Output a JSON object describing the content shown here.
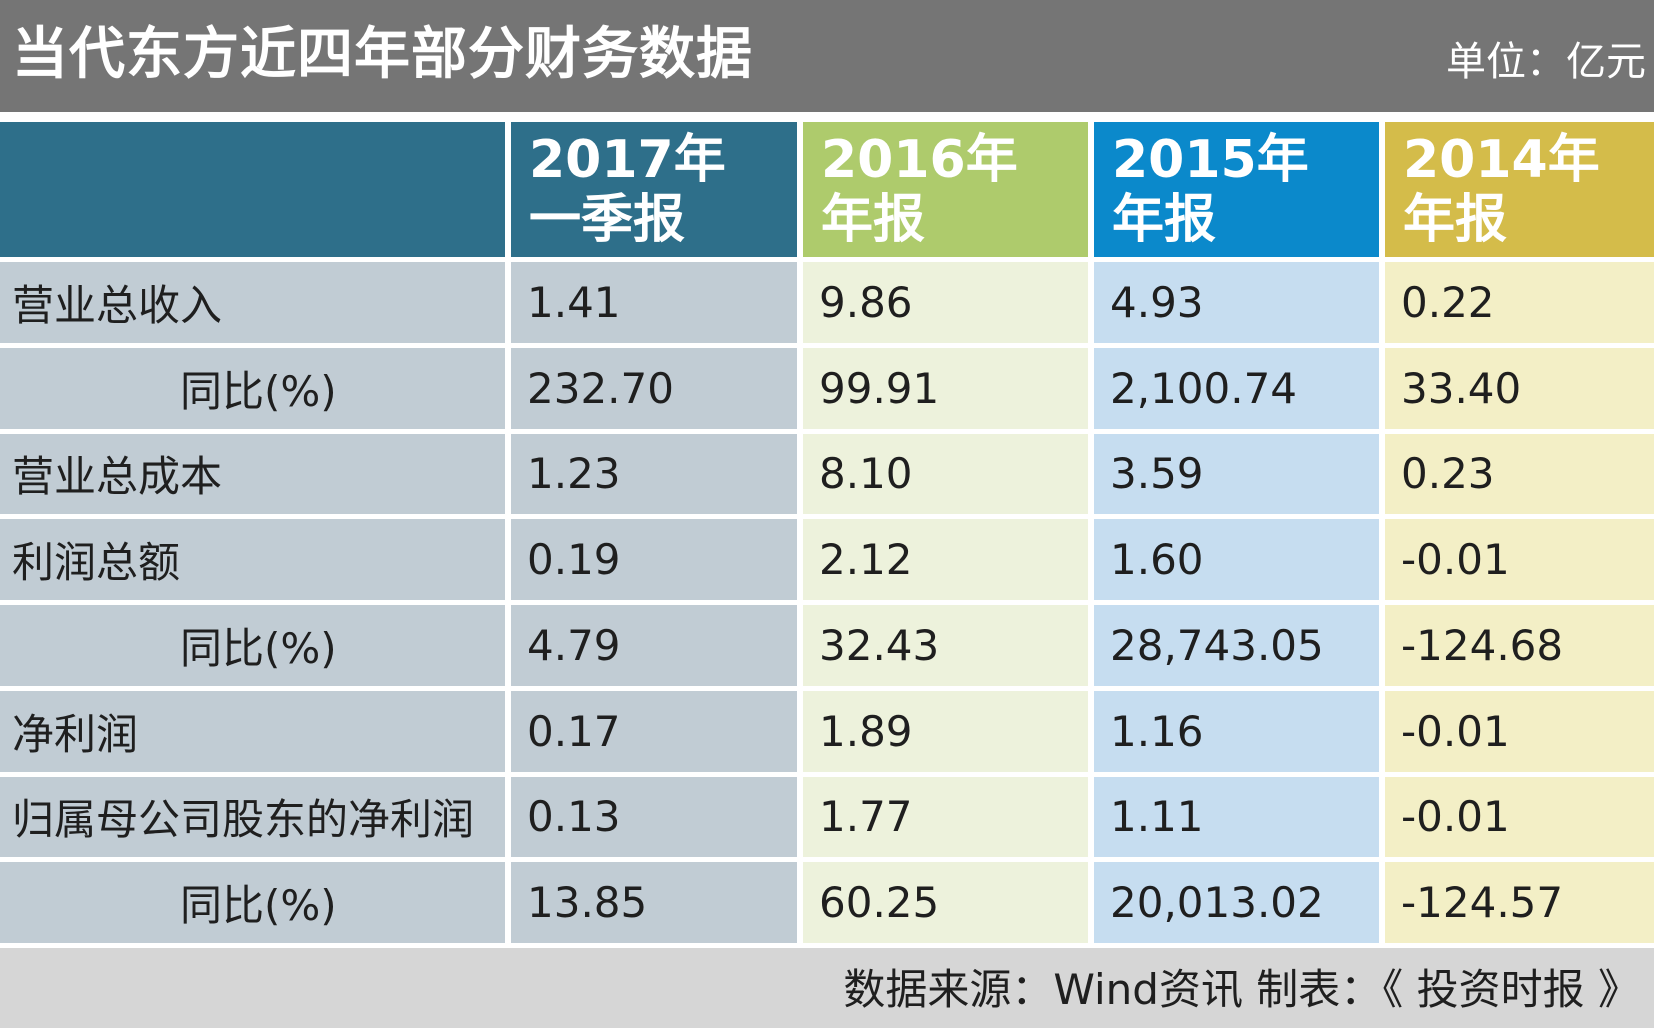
{
  "title": "当代东方近四年部分财务数据",
  "unit": "单位：亿元",
  "colors": {
    "title_bg": "#757575",
    "col_2017": "#2e6f8a",
    "col_2016": "#aecb6c",
    "col_2015": "#0b89cb",
    "col_2014": "#d4bc4a",
    "label_cell_bg": "#c1ccd4",
    "cell_2017_bg": "#c1ccd4",
    "cell_2016_bg": "#edf2dc",
    "cell_2015_bg": "#c6ddf0",
    "cell_2014_bg": "#f3efc6",
    "footer_bg": "#d6d6d6"
  },
  "chart_data": {
    "type": "table",
    "columns": [
      {
        "line1": "2017年",
        "line2": "一季报"
      },
      {
        "line1": "2016年",
        "line2": "年报"
      },
      {
        "line1": "2015年",
        "line2": "年报"
      },
      {
        "line1": "2014年",
        "line2": "年报"
      }
    ],
    "rows": [
      {
        "label": "营业总收入",
        "indent": false,
        "values": [
          "1.41",
          "9.86",
          "4.93",
          "0.22"
        ]
      },
      {
        "label": "同比(%)",
        "indent": true,
        "values": [
          "232.70",
          "99.91",
          "2,100.74",
          "33.40"
        ]
      },
      {
        "label": "营业总成本",
        "indent": false,
        "values": [
          "1.23",
          "8.10",
          "3.59",
          "0.23"
        ]
      },
      {
        "label": "利润总额",
        "indent": false,
        "values": [
          "0.19",
          "2.12",
          "1.60",
          "-0.01"
        ]
      },
      {
        "label": "同比(%)",
        "indent": true,
        "values": [
          "4.79",
          "32.43",
          "28,743.05",
          "-124.68"
        ]
      },
      {
        "label": "净利润",
        "indent": false,
        "values": [
          "0.17",
          "1.89",
          "1.16",
          "-0.01"
        ]
      },
      {
        "label": "归属母公司股东的净利润",
        "indent": false,
        "values": [
          "0.13",
          "1.77",
          "1.11",
          "-0.01"
        ]
      },
      {
        "label": "同比(%)",
        "indent": true,
        "values": [
          "13.85",
          "60.25",
          "20,013.02",
          "-124.57"
        ]
      }
    ]
  },
  "footer": {
    "source": "数据来源：Wind资讯  制表：《 投资时报 》"
  }
}
